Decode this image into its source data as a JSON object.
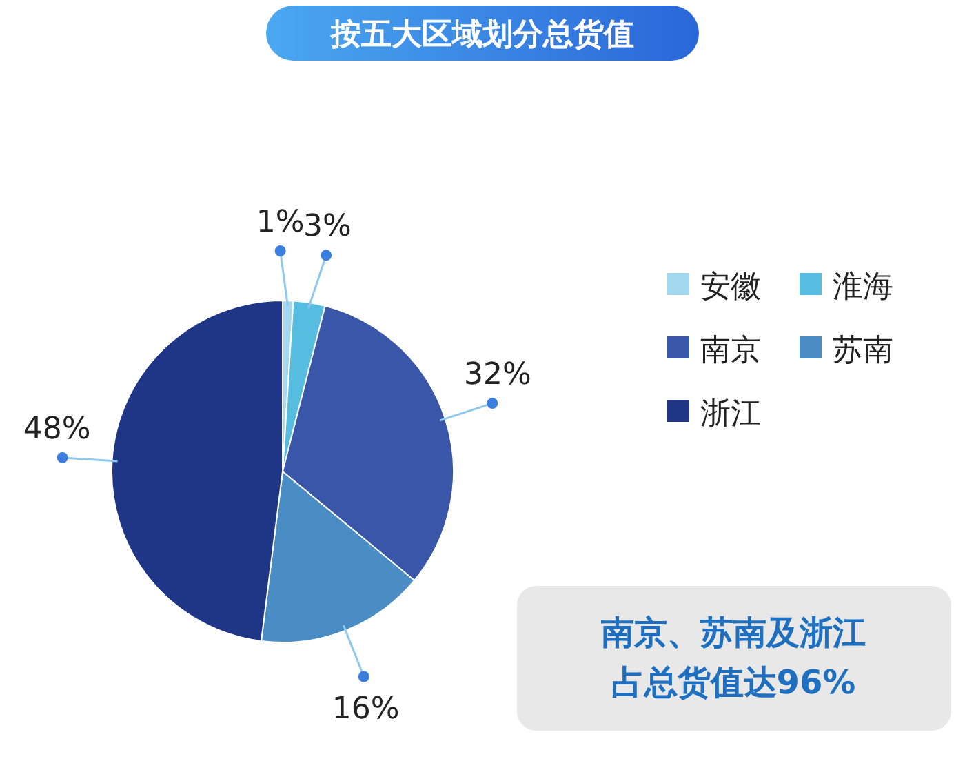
{
  "chart_data": {
    "type": "pie",
    "title": "按五大区域划分总货值",
    "categories": [
      "安徽",
      "淮海",
      "南京",
      "苏南",
      "浙江"
    ],
    "values": [
      1,
      3,
      32,
      16,
      48
    ],
    "value_labels": [
      "1%",
      "3%",
      "32%",
      "16%",
      "48%"
    ],
    "colors": [
      "#a4d8f0",
      "#56bde0",
      "#3a56a8",
      "#4a8cc4",
      "#1f3586"
    ],
    "legend": "right",
    "annotations": [
      "南京、苏南及浙江",
      "占总货值达96%"
    ]
  }
}
